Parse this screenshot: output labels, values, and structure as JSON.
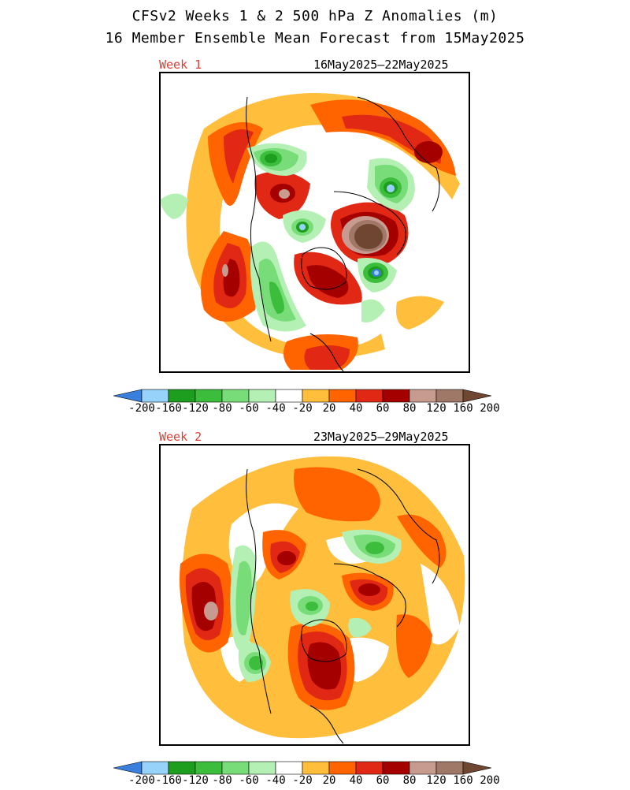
{
  "title": {
    "line1": "CFSv2 Weeks 1 & 2 500 hPa Z Anomalies (m)",
    "line2": "16 Member Ensemble Mean Forecast from 15May2025"
  },
  "panels": [
    {
      "label": "Week 1",
      "date_range": "16May2025—22May2025"
    },
    {
      "label": "Week 2",
      "date_range": "23May2025—29May2025"
    }
  ],
  "colorbar": {
    "unit": "m",
    "labels": [
      "-200",
      "-160",
      "-120",
      "-80",
      "-60",
      "-40",
      "-20",
      "20",
      "40",
      "60",
      "80",
      "120",
      "160",
      "200"
    ],
    "colors": [
      "#3a7fdc",
      "#96d2fa",
      "#1e9e1e",
      "#3cbe3c",
      "#78dc78",
      "#b4f0b4",
      "#ffffff",
      "#ffbe3c",
      "#ff6400",
      "#e12814",
      "#a50000",
      "#c89b90",
      "#a07868",
      "#6e4632"
    ]
  },
  "colors": {
    "neg_200": "#3a7fdc",
    "neg_160": "#96d2fa",
    "neg_120": "#1e9e1e",
    "neg_80": "#3cbe3c",
    "neg_60": "#78dc78",
    "neg_40": "#b4f0b4",
    "pos_20": "#ffbe3c",
    "pos_40": "#ff6400",
    "pos_60": "#e12814",
    "pos_80": "#a50000",
    "pos_120": "#c89b90",
    "pos_160": "#a07868",
    "pos_200": "#6e4632",
    "week_label": "#e03c32"
  }
}
